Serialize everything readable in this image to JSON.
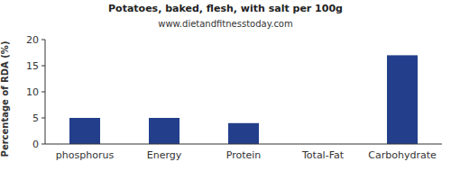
{
  "chart_data": {
    "type": "bar",
    "title": "Potatoes, baked, flesh, with salt per 100g",
    "subtitle": "www.dietandfitnesstoday.com",
    "y_label": "Percentage of RDA (%)",
    "categories": [
      "phosphorus",
      "Energy",
      "Protein",
      "Total-Fat",
      "Carbohydrate"
    ],
    "values": [
      5,
      5,
      4,
      0,
      17
    ],
    "color": "#233f8c",
    "ylim": [
      0,
      20
    ],
    "yticks": [
      0,
      5,
      10,
      15,
      20
    ],
    "grid": false
  }
}
